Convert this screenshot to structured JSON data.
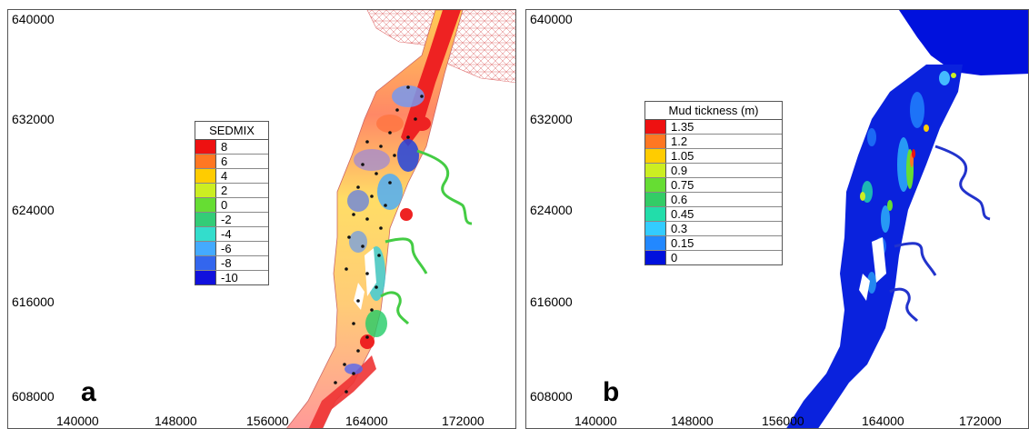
{
  "panels": [
    {
      "letter": "a",
      "y_ticks": [
        "640000",
        "632000",
        "624000",
        "616000",
        "608000"
      ],
      "x_ticks": [
        "140000",
        "148000",
        "156000",
        "164000",
        "172000"
      ],
      "legend": {
        "title": "SEDMIX",
        "entries": [
          {
            "label": "8",
            "color": "#ee1111"
          },
          {
            "label": "6",
            "color": "#ff7722"
          },
          {
            "label": "4",
            "color": "#ffcc00"
          },
          {
            "label": "2",
            "color": "#ccee22"
          },
          {
            "label": "0",
            "color": "#66dd33"
          },
          {
            "label": "-2",
            "color": "#33cc77"
          },
          {
            "label": "-4",
            "color": "#33ddcc"
          },
          {
            "label": "-6",
            "color": "#44aaff"
          },
          {
            "label": "-8",
            "color": "#3366ee"
          },
          {
            "label": "-10",
            "color": "#1111dd"
          }
        ]
      }
    },
    {
      "letter": "b",
      "y_ticks": [
        "640000",
        "632000",
        "624000",
        "616000",
        "608000"
      ],
      "x_ticks": [
        "140000",
        "148000",
        "156000",
        "164000",
        "172000"
      ],
      "legend": {
        "title": "Mud tickness (m)",
        "entries": [
          {
            "label": "1.35",
            "color": "#ee1111"
          },
          {
            "label": "1.2",
            "color": "#ff7722"
          },
          {
            "label": "1.05",
            "color": "#ffcc00"
          },
          {
            "label": "0.9",
            "color": "#ccee22"
          },
          {
            "label": "0.75",
            "color": "#66dd33"
          },
          {
            "label": "0.6",
            "color": "#33cc66"
          },
          {
            "label": "0.45",
            "color": "#22ddaa"
          },
          {
            "label": "0.3",
            "color": "#33ccff"
          },
          {
            "label": "0.15",
            "color": "#2288ff"
          },
          {
            "label": "0",
            "color": "#0011dd"
          }
        ]
      }
    }
  ]
}
